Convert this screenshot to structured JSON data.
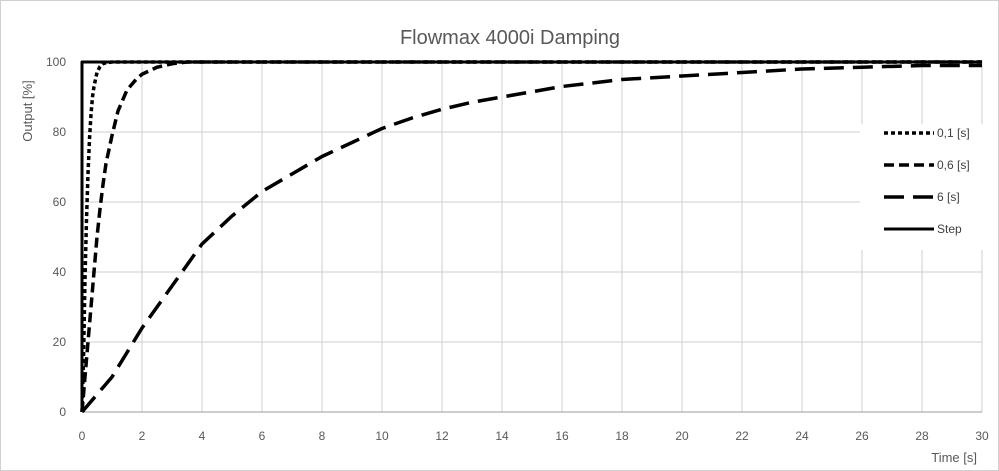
{
  "chart_data": {
    "type": "line",
    "title": "Flowmax 4000i Damping",
    "xlabel": "Time [s]",
    "ylabel": "Output  [%]",
    "xlim": [
      0,
      30
    ],
    "ylim": [
      0,
      100
    ],
    "x_ticks": [
      0,
      2,
      4,
      6,
      8,
      10,
      12,
      14,
      16,
      18,
      20,
      22,
      24,
      26,
      28,
      30
    ],
    "y_ticks": [
      0,
      20,
      40,
      60,
      80,
      100
    ],
    "grid": true,
    "legend_position": "right",
    "series": [
      {
        "name": "0,1 [s]",
        "style": "dotted",
        "color": "#000000",
        "points": [
          [
            0,
            0
          ],
          [
            0.05,
            15
          ],
          [
            0.1,
            38
          ],
          [
            0.15,
            55
          ],
          [
            0.2,
            68
          ],
          [
            0.25,
            78
          ],
          [
            0.3,
            85
          ],
          [
            0.35,
            90
          ],
          [
            0.4,
            93
          ],
          [
            0.5,
            97
          ],
          [
            0.6,
            98.7
          ],
          [
            0.7,
            99.5
          ],
          [
            0.8,
            99.8
          ],
          [
            1,
            100
          ],
          [
            30,
            100
          ]
        ]
      },
      {
        "name": "0,6 [s]",
        "style": "dashed",
        "color": "#000000",
        "points": [
          [
            0,
            0
          ],
          [
            0.1,
            10
          ],
          [
            0.2,
            20
          ],
          [
            0.3,
            30
          ],
          [
            0.4,
            40
          ],
          [
            0.5,
            50
          ],
          [
            0.6,
            58
          ],
          [
            0.7,
            65
          ],
          [
            0.8,
            71
          ],
          [
            1,
            79
          ],
          [
            1.2,
            86
          ],
          [
            1.5,
            92
          ],
          [
            1.8,
            95
          ],
          [
            2,
            96.5
          ],
          [
            2.5,
            98.5
          ],
          [
            3,
            99.5
          ],
          [
            3.5,
            100
          ],
          [
            30,
            100
          ]
        ]
      },
      {
        "name": "6 [s]",
        "style": "long-dashed",
        "color": "#000000",
        "points": [
          [
            0,
            0
          ],
          [
            0.5,
            5
          ],
          [
            1,
            10
          ],
          [
            1.5,
            17
          ],
          [
            2,
            24
          ],
          [
            3,
            36
          ],
          [
            4,
            48
          ],
          [
            5,
            56
          ],
          [
            6,
            63
          ],
          [
            7,
            68
          ],
          [
            8,
            73
          ],
          [
            9,
            77
          ],
          [
            10,
            81
          ],
          [
            11,
            84
          ],
          [
            12,
            86.5
          ],
          [
            13,
            88.5
          ],
          [
            14,
            90
          ],
          [
            16,
            93
          ],
          [
            18,
            95
          ],
          [
            20,
            96
          ],
          [
            22,
            97
          ],
          [
            24,
            98
          ],
          [
            26,
            98.5
          ],
          [
            28,
            99
          ],
          [
            30,
            99
          ]
        ]
      },
      {
        "name": "Step",
        "style": "solid",
        "color": "#000000",
        "points": [
          [
            0,
            0
          ],
          [
            0,
            100
          ],
          [
            30,
            100
          ]
        ]
      }
    ]
  }
}
